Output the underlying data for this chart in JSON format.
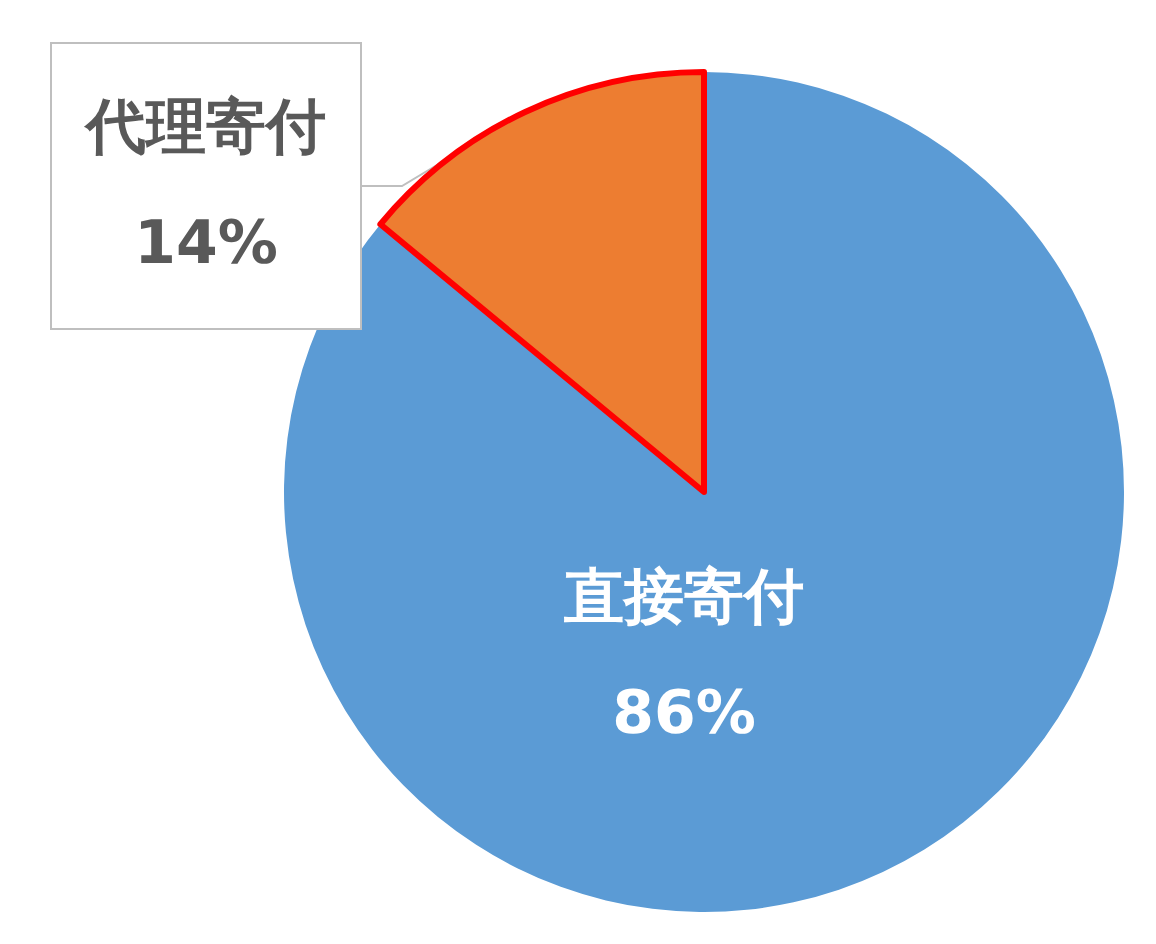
{
  "chart_data": {
    "type": "pie",
    "categories": [
      "直接寄付",
      "代理寄付"
    ],
    "values": [
      86,
      14
    ],
    "value_labels": [
      "86%",
      "14%"
    ],
    "colors": [
      "#5b9bd5",
      "#ed7d31"
    ]
  }
}
